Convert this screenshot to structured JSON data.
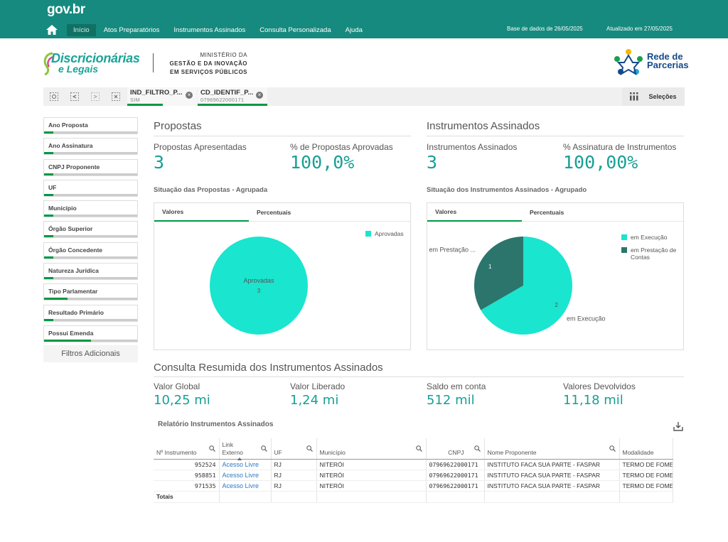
{
  "header": {
    "gov_logo": "gov.br",
    "nav": [
      "Início",
      "Atos Preparatórios",
      "Instrumentos Assinados",
      "Consulta Personalizada",
      "Ajuda"
    ],
    "base_date": "Base de dados de 26/05/2025",
    "updated": "Atualizado em 27/05/2025"
  },
  "brand": {
    "line1": "Discricionárias",
    "line2": "e Legais",
    "ministry_l1": "MINISTÉRIO DA",
    "ministry_l2": "GESTÃO E DA INOVAÇÃO",
    "ministry_l3": "EM SERVIÇOS PÚBLICOS",
    "rede_l1": "Rede de",
    "rede_l2": "Parcerias"
  },
  "selections": {
    "chips": [
      {
        "name": "IND_FILTRO_P...",
        "value": "SIM"
      },
      {
        "name": "CD_IDENTIF_P...",
        "value": "07969622000171"
      }
    ],
    "button": "Seleções"
  },
  "filters": [
    {
      "label": "Ano Proposta",
      "fill": 0.1
    },
    {
      "label": "Ano Assinatura",
      "fill": 0.1
    },
    {
      "label": "CNPJ Proponente",
      "fill": 0.1
    },
    {
      "label": "UF",
      "fill": 0.1
    },
    {
      "label": "Município",
      "fill": 0.1
    },
    {
      "label": "Órgão Superior",
      "fill": 0.1
    },
    {
      "label": "Órgão Concedente",
      "fill": 0.1
    },
    {
      "label": "Natureza Jurídica",
      "fill": 0.1
    },
    {
      "label": "Tipo Parlamentar",
      "fill": 0.25
    },
    {
      "label": "Resultado Primário",
      "fill": 0.1
    },
    {
      "label": "Possui Emenda",
      "fill": 0.5
    }
  ],
  "extra_filters": "Filtros Adicionais",
  "propostas": {
    "title": "Propostas",
    "kpi1_label": "Propostas Apresentadas",
    "kpi1_value": "3",
    "kpi2_label": "% de Propostas Aprovadas",
    "kpi2_value": "100,0%",
    "chart_title": "Situação das Propostas - Agrupada",
    "tab_values": "Valores",
    "tab_percent": "Percentuais"
  },
  "instrumentos": {
    "title": "Instrumentos Assinados",
    "kpi1_label": "Instrumentos Assinados",
    "kpi1_value": "3",
    "kpi2_label": "% Assinatura de Instrumentos",
    "kpi2_value": "100,00%",
    "chart_title": "Situação dos Instrumentos Assinados - Agrupado",
    "tab_values": "Valores",
    "tab_percent": "Percentuais"
  },
  "chart_data": [
    {
      "type": "pie",
      "title": "Situação das Propostas - Agrupada",
      "slices": [
        {
          "label": "Aprovadas",
          "value": 3,
          "color": "#1ae5cf"
        }
      ],
      "legend": [
        "Aprovadas"
      ],
      "legend_position": "top-right"
    },
    {
      "type": "pie",
      "title": "Situação dos Instrumentos Assinados - Agrupado",
      "slices": [
        {
          "label": "em Execução",
          "value": 2,
          "color": "#1ae5cf"
        },
        {
          "label": "em Prestação ...",
          "value": 1,
          "color": "#2c756c"
        }
      ],
      "legend": [
        "em Execução",
        "em Prestação de Contas"
      ],
      "legend_position": "top-right"
    }
  ],
  "consulta": {
    "title": "Consulta Resumida dos Instrumentos Assinados",
    "kpis": [
      {
        "label": "Valor Global",
        "value": "10,25 mi"
      },
      {
        "label": "Valor Liberado",
        "value": "1,24 mi"
      },
      {
        "label": "Saldo em conta",
        "value": "512 mil"
      },
      {
        "label": "Valores Devolvidos",
        "value": "11,18 mil"
      }
    ]
  },
  "report": {
    "title": "Relatório Instrumentos Assinados",
    "columns": [
      "Nº Instrumento",
      "Link Externo",
      "UF",
      "Município",
      "CNPJ",
      "Nome Proponente",
      "Modalidade"
    ],
    "rows": [
      [
        "952524",
        "Acesso Livre",
        "RJ",
        "NITERÓI",
        "07969622000171",
        "INSTITUTO FACA SUA PARTE - FASPAR",
        "TERMO DE FOMENTO"
      ],
      [
        "958851",
        "Acesso Livre",
        "RJ",
        "NITERÓI",
        "07969622000171",
        "INSTITUTO FACA SUA PARTE - FASPAR",
        "TERMO DE FOMENTO"
      ],
      [
        "971535",
        "Acesso Livre",
        "RJ",
        "NITERÓI",
        "07969622000171",
        "INSTITUTO FACA SUA PARTE - FASPAR",
        "TERMO DE FOMENTO"
      ]
    ],
    "total_label": "Totais"
  }
}
